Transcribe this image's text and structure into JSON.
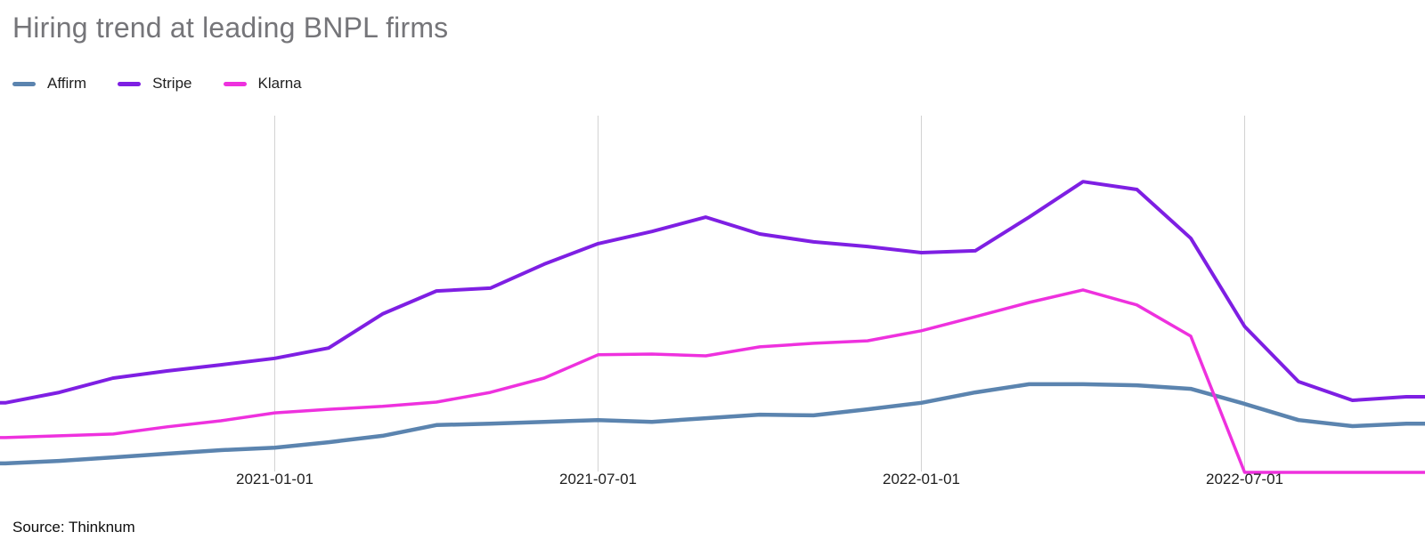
{
  "title": "Hiring trend at leading BNPL firms",
  "source": "Source: Thinknum",
  "legend": [
    {
      "label": "Affirm",
      "color": "#5b84af"
    },
    {
      "label": "Stripe",
      "color": "#7e1fe3"
    },
    {
      "label": "Klarna",
      "color": "#ee31de"
    }
  ],
  "chart_data": {
    "type": "line",
    "title": "Hiring trend at leading BNPL firms",
    "x": [
      "2020-08-01",
      "2020-09-01",
      "2020-10-01",
      "2020-11-01",
      "2020-12-01",
      "2021-01-01",
      "2021-02-01",
      "2021-03-01",
      "2021-04-01",
      "2021-05-01",
      "2021-06-01",
      "2021-07-01",
      "2021-08-01",
      "2021-09-01",
      "2021-10-01",
      "2021-11-01",
      "2021-12-01",
      "2022-01-01",
      "2022-02-01",
      "2022-03-01",
      "2022-04-01",
      "2022-05-01",
      "2022-06-01",
      "2022-07-01",
      "2022-08-01",
      "2022-09-01",
      "2022-10-01"
    ],
    "x_tick_labels": [
      "2021-01-01",
      "2021-07-01",
      "2022-01-01",
      "2022-07-01"
    ],
    "series": [
      {
        "name": "Affirm",
        "color": "#5b84af",
        "values": [
          2.5,
          3.2,
          4.2,
          5.2,
          6.2,
          6.9,
          8.4,
          10.2,
          13.2,
          13.6,
          14.1,
          14.6,
          14.1,
          15.1,
          16.1,
          15.9,
          17.6,
          19.4,
          22.3,
          24.6,
          24.6,
          24.3,
          23.3,
          19.1,
          14.6,
          12.9,
          13.6
        ]
      },
      {
        "name": "Stripe",
        "color": "#7e1fe3",
        "values": [
          19.4,
          22.3,
          26.3,
          28.3,
          30.0,
          31.8,
          34.7,
          44.2,
          50.6,
          51.4,
          58.1,
          63.8,
          67.2,
          71.2,
          66.5,
          64.3,
          63.0,
          61.3,
          61.8,
          71.2,
          81.1,
          78.9,
          65.3,
          40.7,
          25.3,
          20.1,
          21.1
        ]
      },
      {
        "name": "Klarna",
        "color": "#ee31de",
        "values": [
          9.7,
          10.2,
          10.7,
          12.7,
          14.4,
          16.6,
          17.6,
          18.4,
          19.6,
          22.3,
          26.3,
          32.8,
          33.0,
          32.5,
          35.0,
          36.0,
          36.7,
          39.5,
          43.4,
          47.4,
          50.9,
          46.7,
          38.0,
          0,
          0,
          0,
          0
        ]
      }
    ],
    "ylim": [
      0,
      100
    ],
    "y_axis_hidden": true,
    "grid": "vertical-only",
    "legend_position": "top-left",
    "source": "Source: Thinknum"
  }
}
